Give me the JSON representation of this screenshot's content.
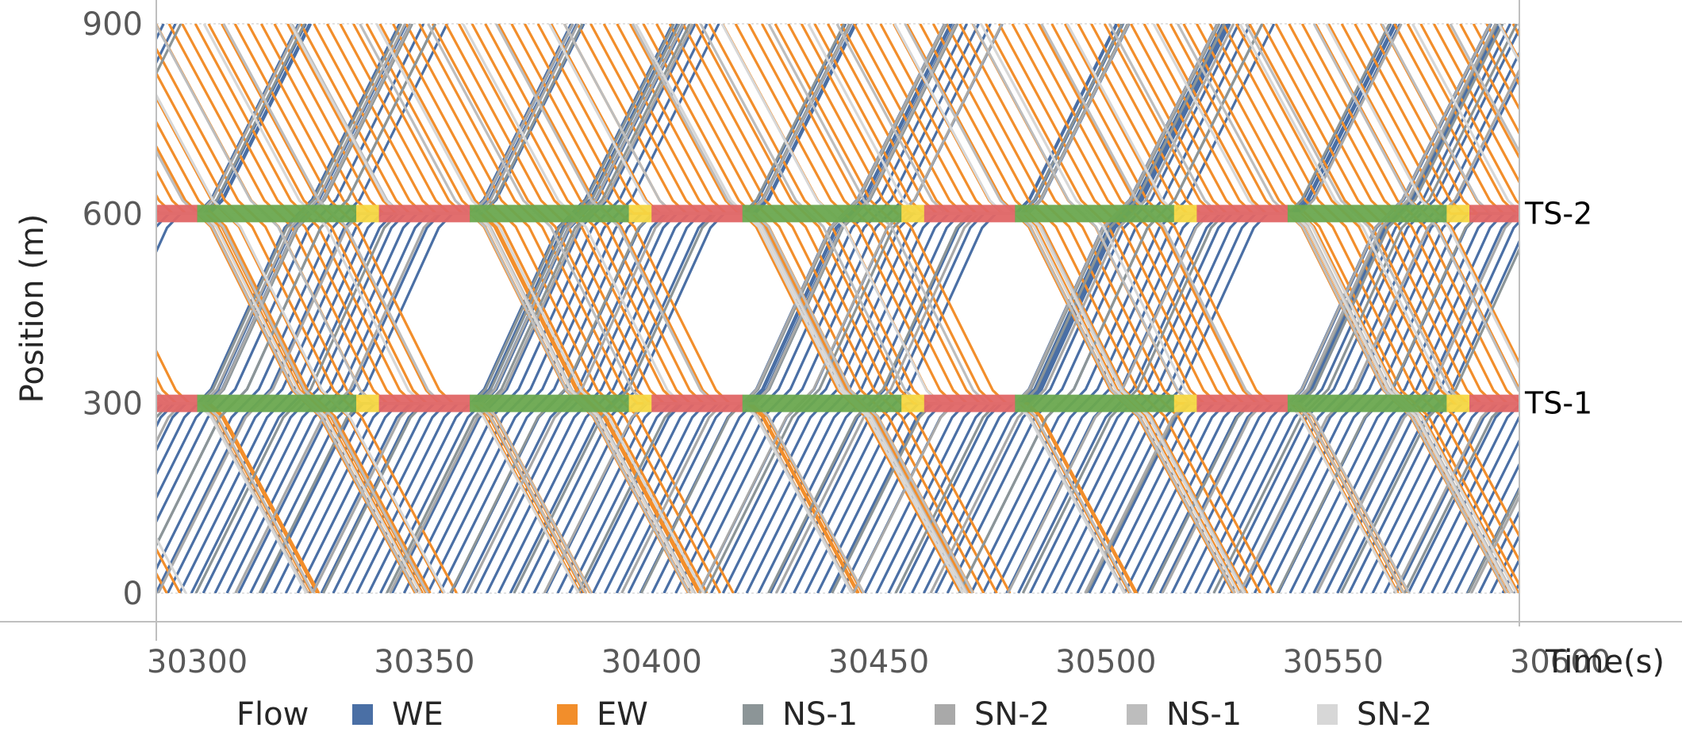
{
  "chart_data": {
    "type": "line",
    "chart_kind": "time-space trajectory diagram",
    "xlabel": "Time(s)",
    "ylabel": "Position (m)",
    "xlim": [
      30291,
      30591
    ],
    "ylim": [
      0,
      900
    ],
    "x_ticks": [
      30300,
      30350,
      30400,
      30450,
      30500,
      30550,
      30600
    ],
    "y_ticks": [
      0,
      300,
      600,
      900
    ],
    "grid": "horizontal gridlines at y ticks",
    "legend": {
      "title": "Flow",
      "placement": "bottom",
      "entries": [
        {
          "name": "WE",
          "color": "#4a6fa5"
        },
        {
          "name": "EW",
          "color": "#f28e2b"
        },
        {
          "name": "NS-1",
          "color": "#8c9597"
        },
        {
          "name": "SN-2",
          "color": "#a9a9a9"
        },
        {
          "name": "NS-1",
          "color": "#bdbdbd"
        },
        {
          "name": "SN-2",
          "color": "#d7d7d7"
        }
      ]
    },
    "signals": [
      {
        "name": "TS-1",
        "position": 300,
        "cycle_s": 60,
        "offset_s": 0,
        "phases": [
          {
            "state": "green",
            "duration": 35
          },
          {
            "state": "yellow",
            "duration": 5
          },
          {
            "state": "red",
            "duration": 20
          }
        ]
      },
      {
        "name": "TS-2",
        "position": 600,
        "cycle_s": 60,
        "offset_s": 0,
        "phases": [
          {
            "state": "green",
            "duration": 35
          },
          {
            "state": "yellow",
            "duration": 5
          },
          {
            "state": "red",
            "duration": 20
          }
        ]
      }
    ],
    "signal_colors": {
      "green": "#6aa84f",
      "yellow": "#f5d742",
      "red": "#e06666"
    },
    "series": [
      {
        "name": "WE",
        "direction": "up",
        "speed_mps": 13.5,
        "headway_s": 2.6,
        "color": "#4a6fa5"
      },
      {
        "name": "EW",
        "direction": "down",
        "speed_mps": 12.5,
        "headway_s": 2.9,
        "color": "#f28e2b"
      },
      {
        "name": "NS-1",
        "direction": "up",
        "speed_mps": 13.5,
        "headway_s": 14,
        "color": "#8c9597"
      },
      {
        "name": "SN-2",
        "direction": "up",
        "speed_mps": 13.5,
        "headway_s": 17,
        "color": "#a9a9a9"
      },
      {
        "name": "NS-1",
        "direction": "down",
        "speed_mps": 12.5,
        "headway_s": 15,
        "color": "#bdbdbd"
      },
      {
        "name": "SN-2",
        "direction": "down",
        "speed_mps": 12.5,
        "headway_s": 19,
        "color": "#d7d7d7"
      }
    ]
  }
}
